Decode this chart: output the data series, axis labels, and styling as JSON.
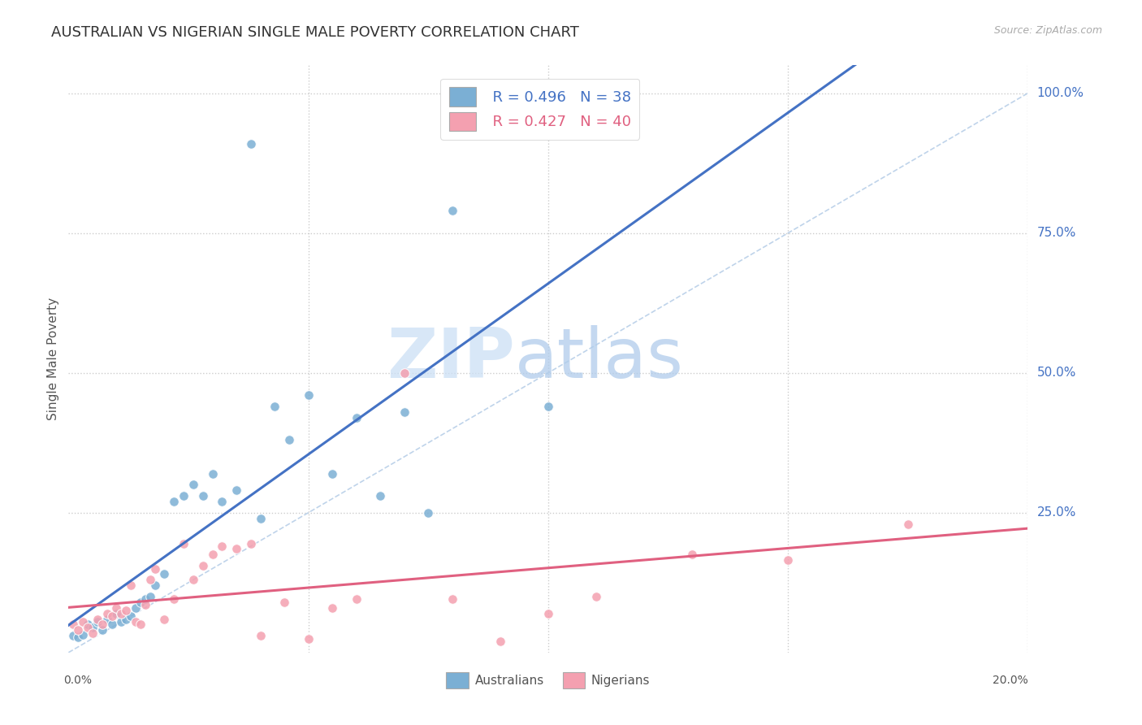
{
  "title": "AUSTRALIAN VS NIGERIAN SINGLE MALE POVERTY CORRELATION CHART",
  "source": "Source: ZipAtlas.com",
  "ylabel": "Single Male Poverty",
  "background_color": "#ffffff",
  "aus_color": "#7bafd4",
  "nig_color": "#f4a0b0",
  "aus_line_color": "#4472c4",
  "nig_line_color": "#e06080",
  "diag_color": "#b8cfe8",
  "legend_aus_r": "0.496",
  "legend_aus_n": "38",
  "legend_nig_r": "0.427",
  "legend_nig_n": "40",
  "aus_scatter_x": [
    0.001,
    0.002,
    0.003,
    0.004,
    0.005,
    0.006,
    0.007,
    0.008,
    0.009,
    0.01,
    0.011,
    0.012,
    0.013,
    0.014,
    0.015,
    0.016,
    0.017,
    0.018,
    0.02,
    0.022,
    0.024,
    0.026,
    0.028,
    0.03,
    0.032,
    0.035,
    0.038,
    0.04,
    0.043,
    0.046,
    0.05,
    0.055,
    0.06,
    0.065,
    0.07,
    0.075,
    0.08,
    0.1
  ],
  "aus_scatter_y": [
    0.03,
    0.028,
    0.032,
    0.05,
    0.045,
    0.055,
    0.04,
    0.06,
    0.05,
    0.07,
    0.055,
    0.06,
    0.065,
    0.08,
    0.09,
    0.095,
    0.1,
    0.12,
    0.14,
    0.27,
    0.28,
    0.3,
    0.28,
    0.32,
    0.27,
    0.29,
    0.91,
    0.24,
    0.44,
    0.38,
    0.46,
    0.32,
    0.42,
    0.28,
    0.43,
    0.25,
    0.79,
    0.44
  ],
  "nig_scatter_x": [
    0.001,
    0.002,
    0.003,
    0.004,
    0.005,
    0.006,
    0.007,
    0.008,
    0.009,
    0.01,
    0.011,
    0.012,
    0.013,
    0.014,
    0.015,
    0.016,
    0.017,
    0.018,
    0.02,
    0.022,
    0.024,
    0.026,
    0.028,
    0.03,
    0.032,
    0.035,
    0.038,
    0.04,
    0.045,
    0.05,
    0.055,
    0.06,
    0.07,
    0.08,
    0.09,
    0.1,
    0.11,
    0.13,
    0.15,
    0.175
  ],
  "nig_scatter_y": [
    0.05,
    0.04,
    0.055,
    0.045,
    0.035,
    0.06,
    0.05,
    0.07,
    0.065,
    0.08,
    0.07,
    0.075,
    0.12,
    0.055,
    0.05,
    0.085,
    0.13,
    0.15,
    0.06,
    0.095,
    0.195,
    0.13,
    0.155,
    0.175,
    0.19,
    0.185,
    0.195,
    0.03,
    0.09,
    0.025,
    0.08,
    0.095,
    0.5,
    0.095,
    0.02,
    0.07,
    0.1,
    0.175,
    0.165,
    0.23
  ],
  "xlim": [
    0.0,
    0.2
  ],
  "ylim": [
    0.0,
    1.05
  ],
  "ytick_vals": [
    0.25,
    0.5,
    0.75,
    1.0
  ],
  "ytick_labels": [
    "25.0%",
    "50.0%",
    "75.0%",
    "100.0%"
  ],
  "xtick_labels_show": [
    "0.0%",
    "20.0%"
  ],
  "xtick_vals_show": [
    0.0,
    0.2
  ]
}
